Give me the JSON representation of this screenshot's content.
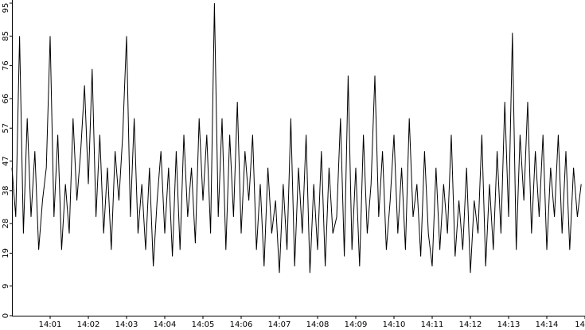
{
  "chart_data": {
    "type": "line",
    "color": "#000000",
    "xlim": [
      0,
      15
    ],
    "xticks": [
      {
        "value": 1,
        "label": "14:01"
      },
      {
        "value": 2,
        "label": "14:02"
      },
      {
        "value": 3,
        "label": "14:03"
      },
      {
        "value": 4,
        "label": "14:04"
      },
      {
        "value": 5,
        "label": "14:05"
      },
      {
        "value": 6,
        "label": "14:06"
      },
      {
        "value": 7,
        "label": "14:07"
      },
      {
        "value": 8,
        "label": "14:08"
      },
      {
        "value": 9,
        "label": "14:09"
      },
      {
        "value": 10,
        "label": "14:10"
      },
      {
        "value": 11,
        "label": "14:11"
      },
      {
        "value": 12,
        "label": "14:12"
      },
      {
        "value": 13,
        "label": "14:13"
      },
      {
        "value": 14,
        "label": "14:14"
      },
      {
        "value": 15,
        "label": "14"
      }
    ],
    "ylim": [
      0,
      95
    ],
    "yticks": [
      0,
      9,
      19,
      28,
      38,
      47,
      57,
      66,
      76,
      85,
      95
    ],
    "x": [
      0,
      0.1,
      0.2,
      0.3,
      0.4,
      0.5,
      0.6,
      0.7,
      0.8,
      0.9,
      1,
      1.1,
      1.2,
      1.3,
      1.4,
      1.5,
      1.6,
      1.7,
      1.8,
      1.9,
      2,
      2.1,
      2.2,
      2.3,
      2.4,
      2.5,
      2.6,
      2.7,
      2.8,
      2.9,
      3,
      3.1,
      3.2,
      3.3,
      3.4,
      3.5,
      3.6,
      3.7,
      3.8,
      3.9,
      4,
      4.1,
      4.2,
      4.3,
      4.4,
      4.5,
      4.6,
      4.7,
      4.8,
      4.9,
      5,
      5.1,
      5.2,
      5.3,
      5.4,
      5.5,
      5.6,
      5.7,
      5.8,
      5.9,
      6,
      6.1,
      6.2,
      6.3,
      6.4,
      6.5,
      6.6,
      6.7,
      6.8,
      6.9,
      7,
      7.1,
      7.2,
      7.3,
      7.4,
      7.5,
      7.6,
      7.7,
      7.8,
      7.9,
      8,
      8.1,
      8.2,
      8.3,
      8.4,
      8.5,
      8.6,
      8.7,
      8.8,
      8.9,
      9,
      9.1,
      9.2,
      9.3,
      9.4,
      9.5,
      9.6,
      9.7,
      9.8,
      9.9,
      10,
      10.1,
      10.2,
      10.3,
      10.4,
      10.5,
      10.6,
      10.7,
      10.8,
      10.9,
      11,
      11.1,
      11.2,
      11.3,
      11.4,
      11.5,
      11.6,
      11.7,
      11.8,
      11.9,
      12,
      12.1,
      12.2,
      12.3,
      12.4,
      12.5,
      12.6,
      12.7,
      12.8,
      12.9,
      13,
      13.1,
      13.2,
      13.3,
      13.4,
      13.5,
      13.6,
      13.7,
      13.8,
      13.9,
      14,
      14.1,
      14.2,
      14.3,
      14.4,
      14.5,
      14.6,
      14.7,
      14.8,
      14.9
    ],
    "values": [
      45,
      30,
      85,
      25,
      60,
      30,
      50,
      20,
      35,
      45,
      85,
      30,
      55,
      20,
      40,
      25,
      60,
      35,
      50,
      70,
      40,
      75,
      30,
      55,
      25,
      45,
      20,
      50,
      35,
      55,
      85,
      30,
      60,
      25,
      40,
      20,
      45,
      15,
      35,
      50,
      25,
      45,
      18,
      50,
      20,
      55,
      30,
      45,
      22,
      60,
      35,
      55,
      25,
      95,
      30,
      60,
      20,
      55,
      30,
      65,
      25,
      50,
      35,
      55,
      20,
      40,
      15,
      45,
      25,
      35,
      13,
      40,
      20,
      60,
      15,
      45,
      25,
      55,
      13,
      40,
      20,
      50,
      15,
      45,
      25,
      30,
      60,
      18,
      73,
      20,
      45,
      15,
      55,
      25,
      40,
      73,
      30,
      50,
      20,
      35,
      55,
      25,
      45,
      20,
      60,
      30,
      40,
      18,
      50,
      25,
      15,
      45,
      20,
      40,
      25,
      55,
      18,
      35,
      20,
      45,
      13,
      35,
      25,
      55,
      15,
      40,
      20,
      50,
      25,
      65,
      30,
      86,
      20,
      55,
      35,
      65,
      25,
      50,
      30,
      55,
      20,
      45,
      30,
      55,
      25,
      50,
      20,
      45,
      30,
      40
    ]
  }
}
